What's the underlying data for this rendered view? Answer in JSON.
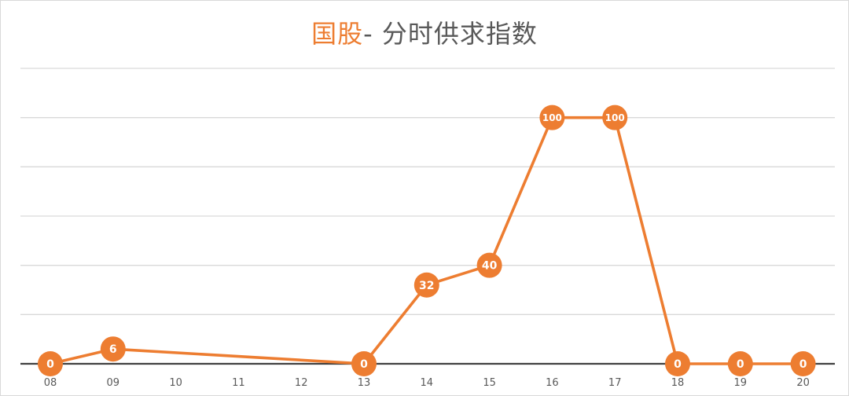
{
  "title": {
    "accent": "国股",
    "rest": "- 分时供求指数"
  },
  "chart_data": {
    "type": "line",
    "title": "国股- 分时供求指数",
    "xlabel": "",
    "ylabel": "",
    "categories": [
      "08",
      "09",
      "10",
      "11",
      "12",
      "13",
      "14",
      "15",
      "16",
      "17",
      "18",
      "19",
      "20"
    ],
    "series": [
      {
        "x": [
          "08",
          "09",
          "13",
          "14",
          "15",
          "16",
          "17",
          "18",
          "19",
          "20"
        ],
        "values": [
          0,
          6,
          0,
          32,
          40,
          100,
          100,
          0,
          0,
          0
        ],
        "labels": [
          "0",
          "6",
          "0",
          "32",
          "40",
          "100",
          "100",
          "0",
          "0",
          "0"
        ],
        "color": "#ed7d31"
      }
    ],
    "ylim": [
      0,
      120
    ],
    "y_gridlines": [
      0,
      20,
      40,
      60,
      80,
      100,
      120
    ],
    "y_tick_labels_visible": false,
    "grid": true,
    "legend": "none",
    "colors": {
      "line": "#ed7d31",
      "grid": "#d9d9d9",
      "axis": "#404040",
      "text": "#595959"
    }
  }
}
